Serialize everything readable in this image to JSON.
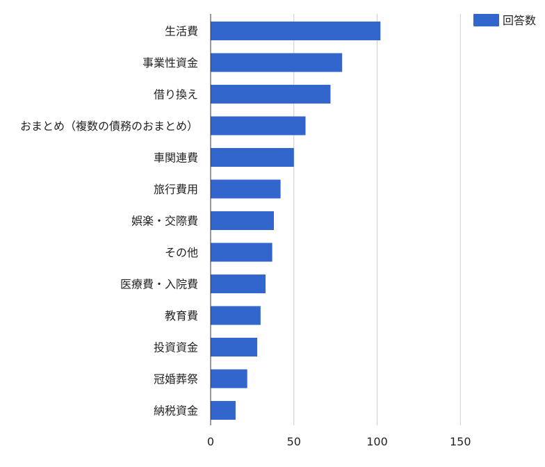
{
  "chart_data": {
    "type": "bar",
    "orientation": "horizontal",
    "title": "",
    "xlabel": "",
    "ylabel": "",
    "categories": [
      "生活費",
      "事業性資金",
      "借り換え",
      "おまとめ（複数の債務のおまとめ）",
      "車関連費",
      "旅行費用",
      "娯楽・交際費",
      "その他",
      "医療費・入院費",
      "教育費",
      "投資資金",
      "冠婚葬祭",
      "納税資金"
    ],
    "series": [
      {
        "name": "回答数",
        "values": [
          102,
          79,
          72,
          57,
          50,
          42,
          38,
          37,
          33,
          30,
          28,
          22,
          15
        ]
      }
    ],
    "xlim": [
      0,
      200
    ],
    "xticks": [
      0,
      50,
      100,
      150
    ],
    "grid": true,
    "legend_position": "top-right",
    "bar_color": "#3366cc",
    "grid_color": "#cccccc",
    "axis_color": "#333333"
  }
}
